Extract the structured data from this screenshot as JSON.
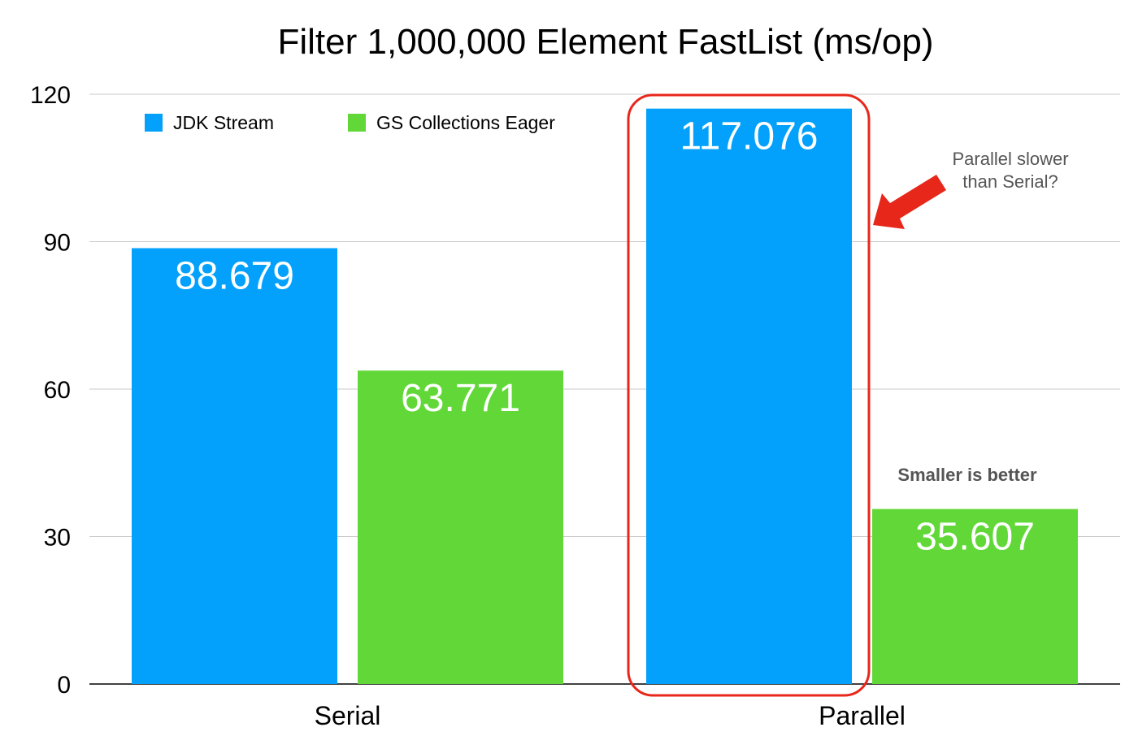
{
  "chart_data": {
    "type": "bar",
    "title": "Filter 1,000,000 Element FastList (ms/op)",
    "categories": [
      "Serial",
      "Parallel"
    ],
    "series": [
      {
        "name": "JDK Stream",
        "color": "#03A1FC",
        "values": [
          88.679,
          117.076
        ]
      },
      {
        "name": "GS Collections Eager",
        "color": "#61D838",
        "values": [
          63.771,
          35.607
        ]
      }
    ],
    "ylim": [
      0,
      120
    ],
    "yticks": [
      0,
      30,
      60,
      90,
      120
    ],
    "grid": true,
    "legend": "top-left",
    "annotations": {
      "callout_lines": [
        "Parallel slower",
        "than Serial?"
      ],
      "note": "Smaller is better"
    },
    "highlight": {
      "category": "Parallel",
      "series": "JDK Stream",
      "color": "#E8271B"
    }
  }
}
